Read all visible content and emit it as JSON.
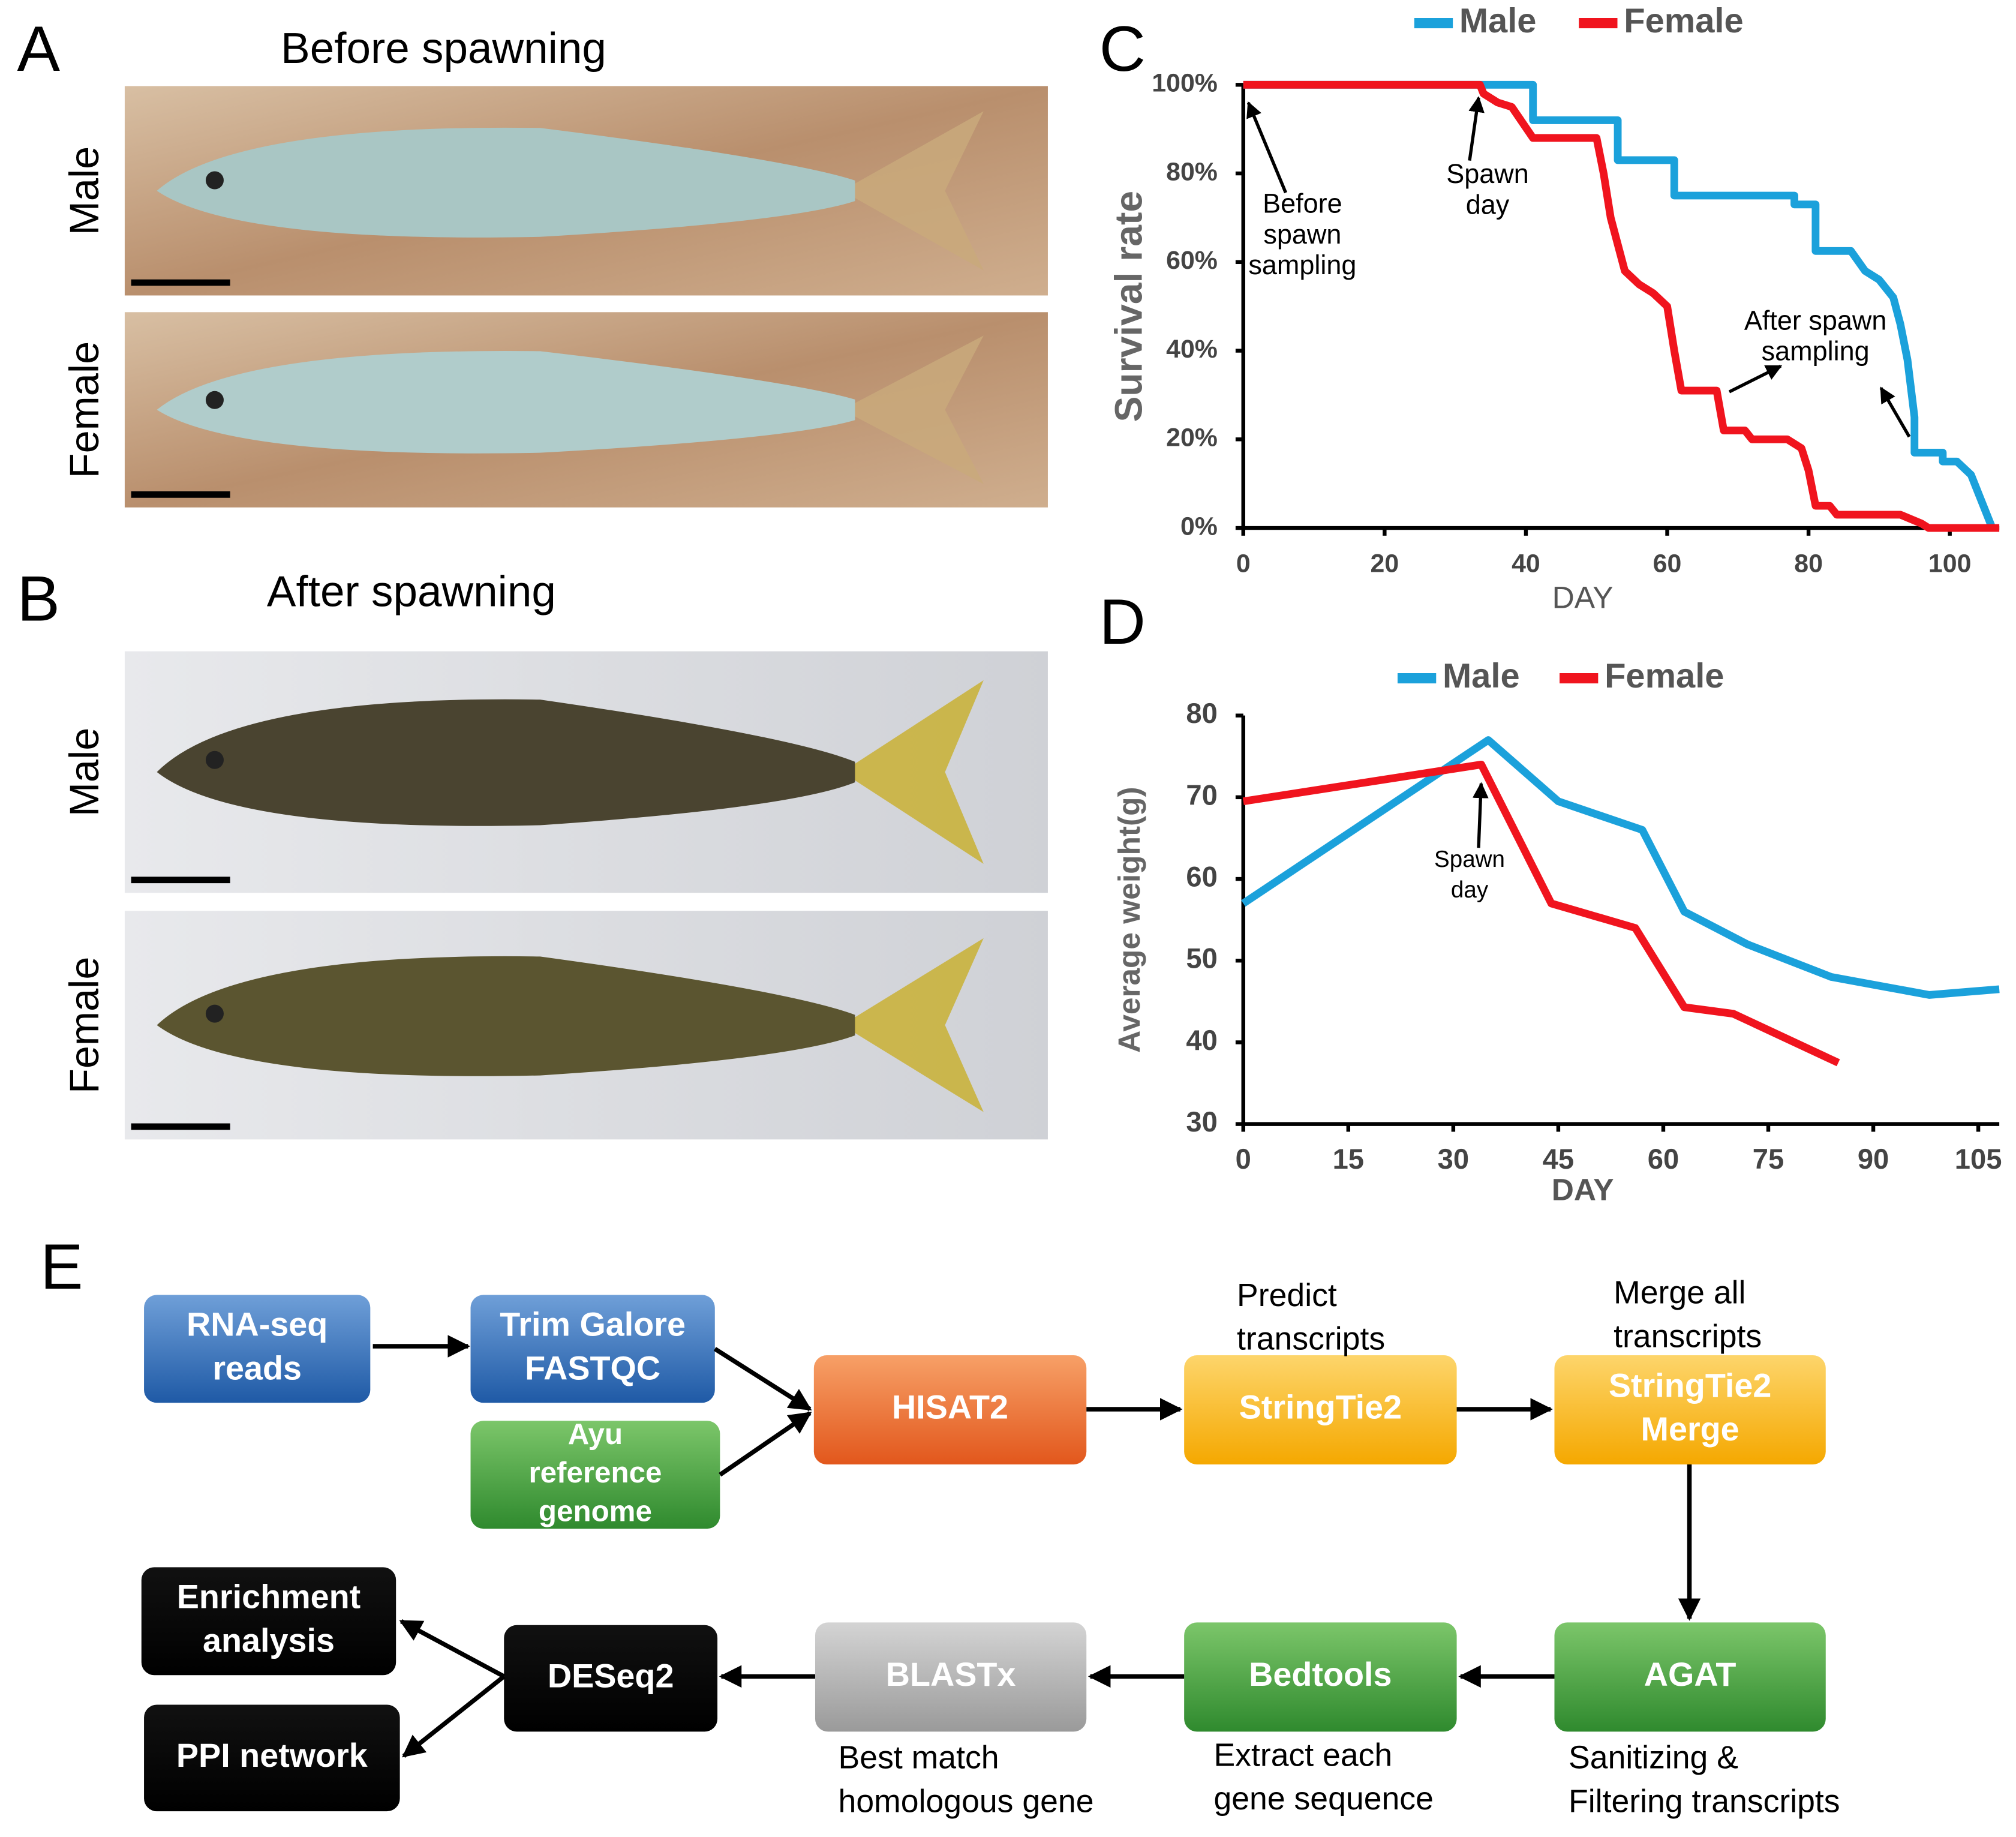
{
  "panels": [
    {
      "letter": "A",
      "title": "Before spawning",
      "rows": [
        "Male",
        "Female"
      ]
    },
    {
      "letter": "B",
      "title": "After spawning",
      "rows": [
        "Male",
        "Female"
      ]
    }
  ],
  "chart_data": [
    {
      "type": "line",
      "panel": "C",
      "x_label": "DAY",
      "y_label": "Survival rate",
      "xlim": [
        0,
        107
      ],
      "xticks": [
        0,
        20,
        40,
        60,
        80,
        100
      ],
      "ylim": [
        0,
        100
      ],
      "yticks": [
        {
          "value": 0,
          "label": "0%"
        },
        {
          "value": 20,
          "label": "20%"
        },
        {
          "value": 40,
          "label": "40%"
        },
        {
          "value": 60,
          "label": "60%"
        },
        {
          "value": 80,
          "label": "80%"
        },
        {
          "value": 100,
          "label": "100%"
        }
      ],
      "series": [
        {
          "name": "Male",
          "color": "#1ba1db",
          "x": [
            0,
            41,
            41,
            53,
            53,
            61,
            61,
            78,
            78,
            81,
            81,
            86,
            88,
            90,
            92,
            93,
            94,
            95,
            95,
            99,
            99,
            101,
            103,
            104,
            106
          ],
          "values": [
            100,
            100,
            92,
            92,
            83,
            83,
            75,
            75,
            73,
            73,
            62.5,
            62.5,
            58,
            56,
            52,
            46,
            38,
            25,
            17,
            17,
            15,
            15,
            12,
            8,
            0
          ]
        },
        {
          "name": "Female",
          "color": "#f0141e",
          "x": [
            0,
            33.5,
            34,
            36,
            38,
            41,
            50,
            51,
            52,
            54,
            56,
            58,
            60,
            61,
            62,
            67,
            68,
            71,
            72,
            77,
            79,
            80,
            81,
            83,
            84,
            93,
            96,
            97,
            107
          ],
          "values": [
            100,
            100,
            98,
            96,
            95,
            88,
            88,
            80,
            70,
            58,
            55,
            53,
            50,
            40,
            31,
            31,
            22,
            22,
            20,
            20,
            18,
            13,
            5,
            5,
            3,
            3,
            1,
            0,
            0
          ]
        }
      ],
      "annotations": [
        [
          "Before",
          "spawn",
          "sampling"
        ],
        [
          "Spawn",
          "day"
        ],
        [
          "After spawn",
          "sampling"
        ]
      ]
    },
    {
      "type": "line",
      "panel": "D",
      "x_label": "DAY",
      "y_label": "Average weight(g)",
      "xlim": [
        0,
        108
      ],
      "xticks": [
        0,
        15,
        30,
        45,
        60,
        75,
        90,
        105
      ],
      "ylim": [
        30,
        80
      ],
      "yticks": [
        30,
        40,
        50,
        60,
        70,
        80
      ],
      "series": [
        {
          "name": "Male",
          "color": "#1ba1db",
          "x": [
            0,
            35,
            45,
            57,
            63,
            72,
            84,
            98,
            108
          ],
          "values": [
            57,
            77,
            69.5,
            66,
            56,
            52,
            48,
            45.8,
            46.5
          ]
        },
        {
          "name": "Female",
          "color": "#f0141e",
          "x": [
            0,
            34,
            44,
            56,
            63,
            70,
            85
          ],
          "values": [
            69.5,
            74,
            57,
            54,
            44.3,
            43.5,
            37.5
          ]
        }
      ],
      "annotations": [
        [
          "Spawn",
          "day"
        ]
      ]
    }
  ],
  "workflow": {
    "letter": "E",
    "nodes": [
      {
        "label": [
          "RNA-seq",
          "reads"
        ]
      },
      {
        "label": [
          "Trim Galore",
          "FASTQC"
        ]
      },
      {
        "label": [
          "Ayu",
          "reference",
          "genome"
        ]
      },
      {
        "label": [
          "HISAT2"
        ]
      },
      {
        "label": [
          "StringTie2"
        ],
        "note": [
          "Predict",
          "transcripts"
        ]
      },
      {
        "label": [
          "StringTie2",
          "Merge"
        ],
        "note": [
          "Merge all",
          "transcripts"
        ]
      },
      {
        "label": [
          "AGAT"
        ],
        "note": [
          "Sanitizing &",
          "Filtering transcripts"
        ]
      },
      {
        "label": [
          "Bedtools"
        ],
        "note": [
          "Extract each",
          "gene sequence"
        ]
      },
      {
        "label": [
          "BLASTx"
        ],
        "note": [
          "Best match",
          "homologous gene"
        ]
      },
      {
        "label": [
          "DESeq2"
        ]
      },
      {
        "label": [
          "Enrichment",
          "analysis"
        ]
      },
      {
        "label": [
          "PPI network"
        ]
      }
    ]
  }
}
